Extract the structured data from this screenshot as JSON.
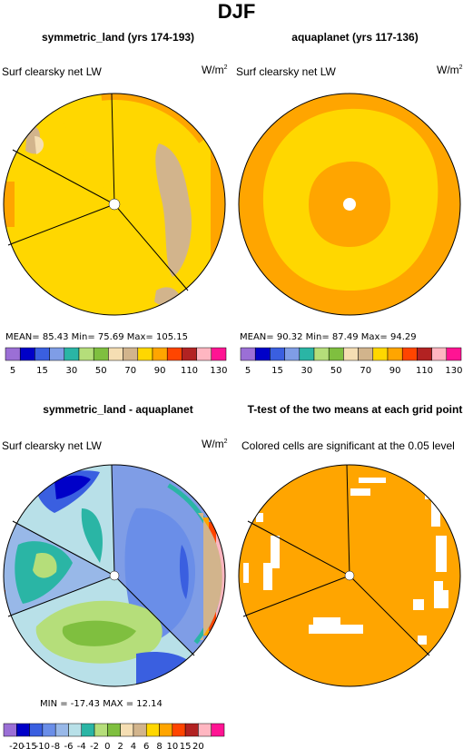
{
  "page_title": "DJF",
  "panels": [
    {
      "title": "symmetric_land (yrs 174-193)",
      "left_label": "Surf clearsky net LW",
      "right_label": "W/m",
      "right_label_sup": "2",
      "stats": "MEAN=  85.43  Min=  75.69  Max= 105.15"
    },
    {
      "title": "aquaplanet (yrs 117-136)",
      "left_label": "Surf clearsky net LW",
      "right_label": "W/m",
      "right_label_sup": "2",
      "stats": "MEAN=  90.32  Min=  87.49  Max=  94.29"
    },
    {
      "title": "symmetric_land - aquaplanet",
      "left_label": "Surf clearsky net LW",
      "right_label": "W/m",
      "right_label_sup": "2",
      "stats": "MIN = -17.43  MAX =  12.14"
    },
    {
      "title": "T-test of the two means at each grid point",
      "left_label": "Colored cells are significant at the 0.05 level"
    }
  ],
  "chart_data": [
    {
      "type": "heatmap",
      "title": "symmetric_land (yrs 174-193)",
      "variable": "Surf clearsky net LW",
      "units": "W/m2",
      "projection": "polar",
      "mean": 85.43,
      "min": 75.69,
      "max": 105.15,
      "colorbar_labels": [
        "5",
        "15",
        "30",
        "50",
        "70",
        "90",
        "110",
        "130"
      ],
      "colorbar_colors": [
        "#9b6fd6",
        "#0000c8",
        "#3a5fe0",
        "#7f9de6",
        "#2ab5a5",
        "#b5de7a",
        "#7fbf3f",
        "#f5deb3",
        "#d2b48c",
        "#ffd700",
        "#ffa500",
        "#ff4500",
        "#b22222",
        "#ffb6c1",
        "#ff1493"
      ]
    },
    {
      "type": "heatmap",
      "title": "aquaplanet (yrs 117-136)",
      "variable": "Surf clearsky net LW",
      "units": "W/m2",
      "projection": "polar",
      "mean": 90.32,
      "min": 87.49,
      "max": 94.29,
      "colorbar_labels": [
        "5",
        "15",
        "30",
        "50",
        "70",
        "90",
        "110",
        "130"
      ],
      "colorbar_colors": [
        "#9b6fd6",
        "#0000c8",
        "#3a5fe0",
        "#7f9de6",
        "#2ab5a5",
        "#b5de7a",
        "#7fbf3f",
        "#f5deb3",
        "#d2b48c",
        "#ffd700",
        "#ffa500",
        "#ff4500",
        "#b22222",
        "#ffb6c1",
        "#ff1493"
      ]
    },
    {
      "type": "heatmap",
      "title": "symmetric_land - aquaplanet",
      "variable": "Surf clearsky net LW",
      "units": "W/m2",
      "projection": "polar",
      "min": -17.43,
      "max": 12.14,
      "colorbar_labels": [
        "-20",
        "-15",
        "-10",
        "-8",
        "-6",
        "-4",
        "-2",
        "0",
        "2",
        "4",
        "6",
        "8",
        "10",
        "15",
        "20"
      ],
      "colorbar_colors": [
        "#9b6fd6",
        "#0000c8",
        "#3a5fe0",
        "#6a8ee8",
        "#98b8e8",
        "#b8e0e8",
        "#2ab5a5",
        "#b5de7a",
        "#7fbf3f",
        "#f5deb3",
        "#d2b48c",
        "#ffd700",
        "#ffa500",
        "#ff4500",
        "#b22222",
        "#ffb6c1",
        "#ff1493"
      ]
    },
    {
      "type": "heatmap",
      "title": "T-test of the two means at each grid point",
      "projection": "polar",
      "significance_level": 0.05
    }
  ]
}
